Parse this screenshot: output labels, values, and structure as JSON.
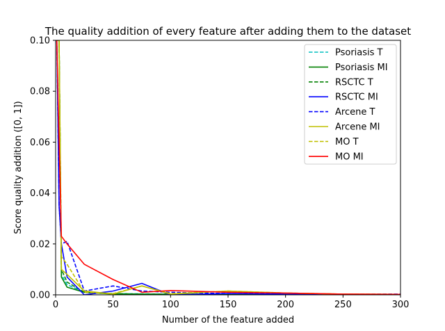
{
  "chart_data": {
    "type": "line",
    "title": "The quality addition of every feature after adding them to the dataset",
    "xlabel": "Number of the feature added",
    "ylabel": "Score quality addition ([0, 1])",
    "xlim": [
      0,
      300
    ],
    "ylim": [
      0,
      0.1
    ],
    "xticks": [
      0,
      50,
      100,
      150,
      200,
      250,
      300
    ],
    "xtick_labels": [
      "0",
      "50",
      "100",
      "150",
      "200",
      "250",
      "300"
    ],
    "yticks": [
      0,
      0.02,
      0.04,
      0.06,
      0.08,
      0.1
    ],
    "ytick_labels": [
      "0.00",
      "0.02",
      "0.04",
      "0.06",
      "0.08",
      "0.10"
    ],
    "grid": false,
    "legend_position": "top-right",
    "series": [
      {
        "name": "Psoriasis T",
        "color": "#00bfbf",
        "dash": "dashed",
        "x": [
          1,
          3,
          5,
          10,
          25,
          50,
          75,
          100,
          150,
          200,
          250,
          300
        ],
        "y": [
          0.1,
          0.1,
          0.008,
          0.004,
          0.001,
          0.0005,
          0.0004,
          0.0003,
          0.0003,
          0.0002,
          0.0002,
          0.0002
        ]
      },
      {
        "name": "Psoriasis MI",
        "color": "#008000",
        "dash": "solid",
        "x": [
          1,
          3,
          5,
          10,
          25,
          50,
          75,
          100,
          150,
          200,
          250,
          300
        ],
        "y": [
          0.1,
          0.1,
          0.007,
          0.003,
          0.001,
          0.0003,
          0.0003,
          0.0002,
          0.0002,
          0.0002,
          0.0001,
          0.0001
        ]
      },
      {
        "name": "RSCTC T",
        "color": "#008000",
        "dash": "dashed",
        "x": [
          1,
          3,
          5,
          10,
          25,
          50,
          75,
          100,
          150,
          200,
          250,
          300
        ],
        "y": [
          0.1,
          0.1,
          0.01,
          0.005,
          0.001,
          0.0005,
          0.0003,
          0.0003,
          0.0002,
          0.0002,
          0.0002,
          0.0002
        ]
      },
      {
        "name": "RSCTC MI",
        "color": "#0000ff",
        "dash": "solid",
        "x": [
          1,
          3,
          5,
          10,
          25,
          50,
          75,
          100,
          150,
          200,
          250,
          300
        ],
        "y": [
          0.1,
          0.035,
          0.02,
          0.007,
          0.0,
          0.0015,
          0.0045,
          0.0,
          0.0005,
          0.0003,
          0.0002,
          0.0002
        ]
      },
      {
        "name": "Arcene T",
        "color": "#0000ff",
        "dash": "dashed",
        "x": [
          1,
          3,
          5,
          10,
          25,
          50,
          75,
          100,
          150,
          200,
          250,
          300
        ],
        "y": [
          0.1,
          0.035,
          0.02,
          0.021,
          0.0015,
          0.0035,
          0.0015,
          0.001,
          0.0005,
          0.0005,
          0.0003,
          0.0003
        ]
      },
      {
        "name": "Arcene MI",
        "color": "#bfbf00",
        "dash": "solid",
        "x": [
          1,
          3,
          5,
          10,
          25,
          50,
          75,
          100,
          150,
          200,
          250,
          300
        ],
        "y": [
          0.1,
          0.1,
          0.01,
          0.008,
          0.0015,
          0.0003,
          0.0035,
          0.0003,
          0.0015,
          0.0007,
          0.0003,
          0.0002
        ]
      },
      {
        "name": "MO T",
        "color": "#bfbf00",
        "dash": "dashed",
        "x": [
          1,
          3,
          5,
          10,
          25,
          50,
          75,
          100,
          150,
          200,
          250,
          300
        ],
        "y": [
          0.1,
          0.1,
          0.015,
          0.012,
          0.001,
          0.0005,
          0.0035,
          0.0005,
          0.0015,
          0.0007,
          0.0003,
          0.0002
        ]
      },
      {
        "name": "MO MI",
        "color": "#ff0000",
        "dash": "solid",
        "x": [
          1,
          3,
          5,
          10,
          25,
          50,
          75,
          100,
          150,
          200,
          250,
          300
        ],
        "y": [
          0.1,
          0.06,
          0.023,
          0.02,
          0.012,
          0.006,
          0.001,
          0.0017,
          0.001,
          0.0007,
          0.0003,
          0.0002
        ]
      }
    ]
  }
}
